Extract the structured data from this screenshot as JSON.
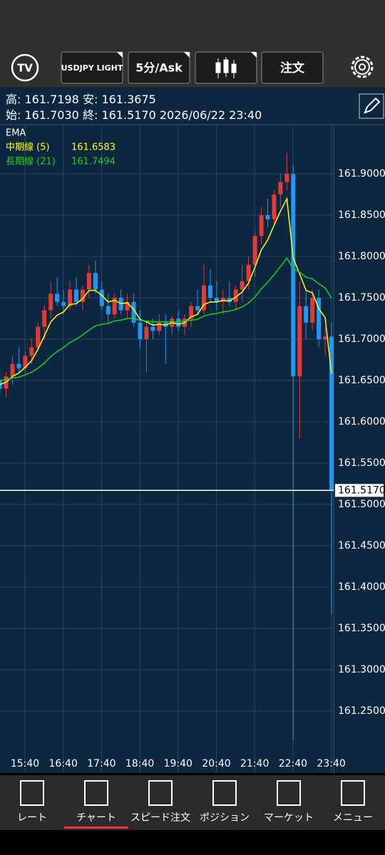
{
  "toolbar": {
    "symbol": "USDJPY LIGHT",
    "timeframe": "5分/Ask",
    "order": "注文"
  },
  "header": {
    "high_label": "高:",
    "high": "161.7198",
    "low_label": "安:",
    "low": "161.3675",
    "open_label": "始:",
    "open": "161.7030",
    "close_label": "終:",
    "close": "161.5170",
    "datetime": "2026/06/22 23:40"
  },
  "chart_data": {
    "type": "candlestick",
    "indicator": "EMA",
    "up_color": "#e53935",
    "down_color": "#2196f3",
    "grid": true,
    "candles": [
      [
        161.65,
        161.665,
        161.625,
        161.64
      ],
      [
        161.64,
        161.66,
        161.63,
        161.655
      ],
      [
        161.655,
        161.68,
        161.645,
        161.67
      ],
      [
        161.67,
        161.69,
        161.66,
        161.665
      ],
      [
        161.665,
        161.685,
        161.655,
        161.68
      ],
      [
        161.68,
        161.7,
        161.67,
        161.69
      ],
      [
        161.69,
        161.72,
        161.685,
        161.715
      ],
      [
        161.715,
        161.74,
        161.7,
        161.735
      ],
      [
        161.735,
        161.77,
        161.725,
        161.755
      ],
      [
        161.755,
        161.775,
        161.74,
        161.745
      ],
      [
        161.745,
        161.76,
        161.73,
        161.74
      ],
      [
        161.74,
        161.77,
        161.735,
        161.76
      ],
      [
        161.76,
        161.775,
        161.74,
        161.745
      ],
      [
        161.745,
        161.765,
        161.735,
        161.76
      ],
      [
        161.76,
        161.79,
        161.75,
        161.78
      ],
      [
        161.78,
        161.795,
        161.755,
        161.76
      ],
      [
        161.76,
        161.77,
        161.735,
        161.74
      ],
      [
        161.74,
        161.755,
        161.72,
        161.73
      ],
      [
        161.73,
        161.755,
        161.725,
        161.75
      ],
      [
        161.75,
        161.76,
        161.73,
        161.735
      ],
      [
        161.735,
        161.755,
        161.725,
        161.745
      ],
      [
        161.745,
        161.755,
        161.715,
        161.72
      ],
      [
        161.72,
        161.735,
        161.69,
        161.7
      ],
      [
        161.7,
        161.72,
        161.66,
        161.715
      ],
      [
        161.715,
        161.725,
        161.7,
        161.71
      ],
      [
        161.71,
        161.73,
        161.705,
        161.72
      ],
      [
        161.72,
        161.73,
        161.67,
        161.715
      ],
      [
        161.715,
        161.728,
        161.705,
        161.725
      ],
      [
        161.725,
        161.735,
        161.71,
        161.715
      ],
      [
        161.715,
        161.73,
        161.705,
        161.725
      ],
      [
        161.725,
        161.745,
        161.715,
        161.74
      ],
      [
        161.74,
        161.76,
        161.73,
        161.735
      ],
      [
        161.735,
        161.79,
        161.73,
        161.765
      ],
      [
        161.765,
        161.785,
        161.745,
        161.75
      ],
      [
        161.75,
        161.77,
        161.735,
        161.745
      ],
      [
        161.745,
        161.76,
        161.73,
        161.75
      ],
      [
        161.75,
        161.77,
        161.74,
        161.745
      ],
      [
        161.745,
        161.765,
        161.735,
        161.76
      ],
      [
        161.76,
        161.79,
        161.745,
        161.77
      ],
      [
        161.77,
        161.8,
        161.76,
        161.79
      ],
      [
        161.79,
        161.83,
        161.775,
        161.825
      ],
      [
        161.825,
        161.86,
        161.815,
        161.85
      ],
      [
        161.85,
        161.87,
        161.835,
        161.845
      ],
      [
        161.845,
        161.88,
        161.84,
        161.875
      ],
      [
        161.875,
        161.9,
        161.86,
        161.89
      ],
      [
        161.89,
        161.925,
        161.88,
        161.9
      ],
      [
        161.9,
        161.91,
        161.215,
        161.655
      ],
      [
        161.655,
        161.77,
        161.58,
        161.74
      ],
      [
        161.74,
        161.76,
        161.7,
        161.72
      ],
      [
        161.72,
        161.76,
        161.71,
        161.75
      ],
      [
        161.75,
        161.76,
        161.69,
        161.7
      ],
      [
        161.7,
        161.715,
        161.68,
        161.703
      ],
      [
        161.703,
        161.7198,
        161.3675,
        161.517
      ]
    ],
    "series": [
      {
        "name": "中期線 (5)",
        "color": "#ffff00",
        "value_label": "161.6583",
        "values": [
          161.645,
          161.648,
          161.655,
          161.659,
          161.666,
          161.674,
          161.688,
          161.704,
          161.721,
          161.729,
          161.733,
          161.742,
          161.743,
          161.749,
          161.759,
          161.759,
          161.753,
          161.745,
          161.747,
          161.743,
          161.744,
          161.736,
          161.724,
          161.721,
          161.717,
          161.718,
          161.717,
          161.72,
          161.718,
          161.72,
          161.727,
          161.73,
          161.742,
          161.745,
          161.745,
          161.747,
          161.746,
          161.751,
          161.757,
          161.768,
          161.787,
          161.808,
          161.82,
          161.838,
          161.855,
          161.87,
          161.798,
          161.779,
          161.759,
          161.756,
          161.737,
          161.726,
          161.6583
        ]
      },
      {
        "name": "長期線 (21)",
        "color": "#22cc22",
        "value_label": "161.7494",
        "values": [
          161.65,
          161.651,
          161.653,
          161.654,
          161.657,
          161.66,
          161.665,
          161.671,
          161.679,
          161.685,
          161.69,
          161.696,
          161.7,
          161.705,
          161.711,
          161.716,
          161.718,
          161.719,
          161.722,
          161.723,
          161.725,
          161.725,
          161.723,
          161.722,
          161.721,
          161.721,
          161.721,
          161.721,
          161.721,
          161.722,
          161.723,
          161.724,
          161.728,
          161.73,
          161.731,
          161.733,
          161.734,
          161.736,
          161.739,
          161.744,
          161.751,
          161.761,
          161.769,
          161.778,
          161.788,
          161.798,
          161.785,
          161.781,
          161.775,
          161.773,
          161.767,
          161.762,
          161.7494
        ]
      }
    ],
    "ylim": [
      161.175,
      161.9595
    ],
    "yticks": [
      {
        "value": 161.25,
        "label": "161.2500"
      },
      {
        "value": 161.3,
        "label": "161.3000"
      },
      {
        "value": 161.35,
        "label": "161.3500"
      },
      {
        "value": 161.4,
        "label": "161.4000"
      },
      {
        "value": 161.45,
        "label": "161.4500"
      },
      {
        "value": 161.5,
        "label": "161.5000"
      },
      {
        "value": 161.55,
        "label": "161.5500"
      },
      {
        "value": 161.6,
        "label": "161.6000"
      },
      {
        "value": 161.65,
        "label": "161.6500"
      },
      {
        "value": 161.7,
        "label": "161.7000"
      },
      {
        "value": 161.75,
        "label": "161.7500"
      },
      {
        "value": 161.8,
        "label": "161.8000"
      },
      {
        "value": 161.85,
        "label": "161.8500"
      },
      {
        "value": 161.9,
        "label": "161.9000"
      }
    ],
    "x_labels": [
      "15:40",
      "16:40",
      "17:40",
      "18:40",
      "19:40",
      "20:40",
      "21:40",
      "22:40",
      "23:40"
    ],
    "current_price": {
      "value": 161.517,
      "label": "161.5170"
    }
  },
  "nav": {
    "items": [
      "レート",
      "チャート",
      "スピード注文",
      "ポジション",
      "マーケット",
      "メニュー"
    ]
  }
}
